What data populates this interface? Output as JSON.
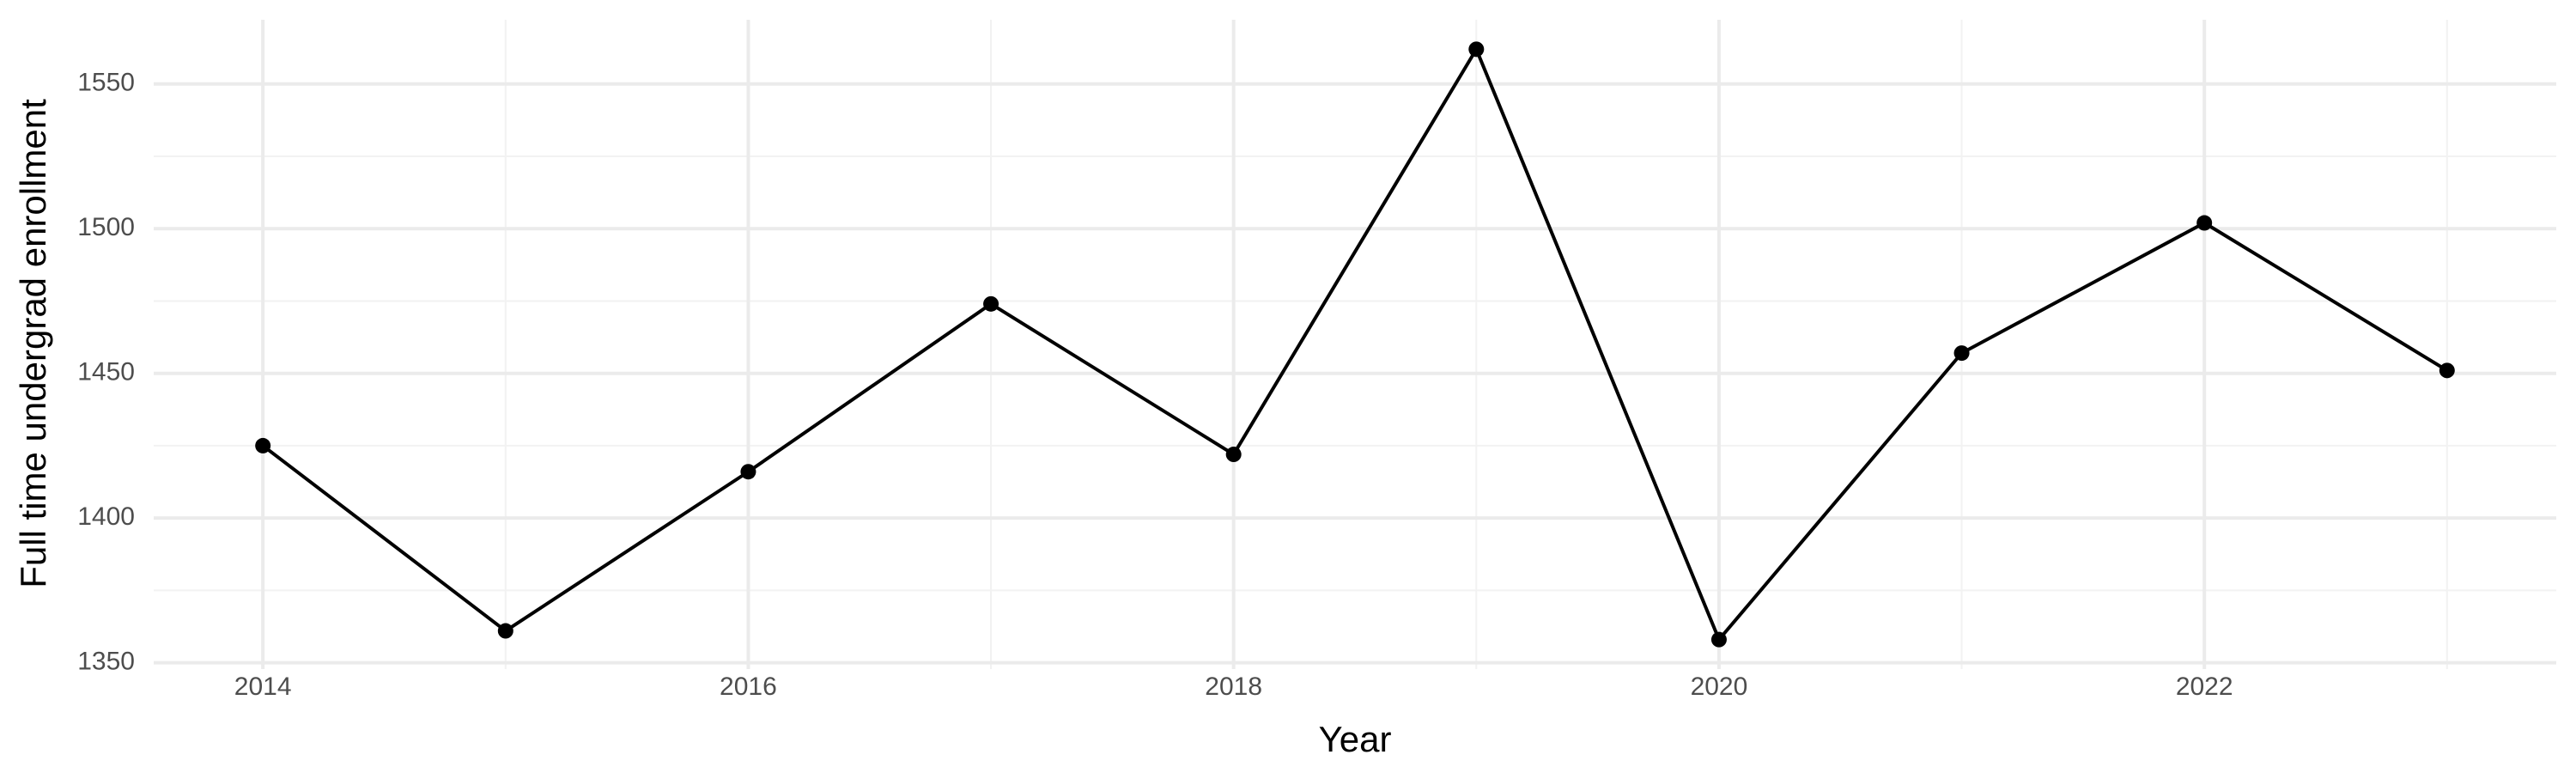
{
  "chart_data": {
    "type": "line",
    "x_label": "Year",
    "y_label": "Full time undergrad enrollment",
    "x": [
      2014,
      2015,
      2016,
      2017,
      2018,
      2019,
      2020,
      2021,
      2022,
      2023
    ],
    "series": [
      {
        "color": "#000000",
        "values": [
          1425,
          1361,
          1416,
          1474,
          1422,
          1562,
          1358,
          1457,
          1502,
          1451
        ]
      }
    ],
    "xlim": [
      2013.55,
      2023.45
    ],
    "xticks": [
      2014,
      2016,
      2018,
      2020,
      2022
    ],
    "x_minor_ticks": [
      2015,
      2017,
      2019,
      2021,
      2023
    ],
    "ylim": [
      1347.8,
      1572.2
    ],
    "yticks": [
      1350,
      1400,
      1450,
      1500,
      1550
    ],
    "y_minor_ticks": [
      1375,
      1425,
      1475,
      1525
    ],
    "grid": true
  }
}
